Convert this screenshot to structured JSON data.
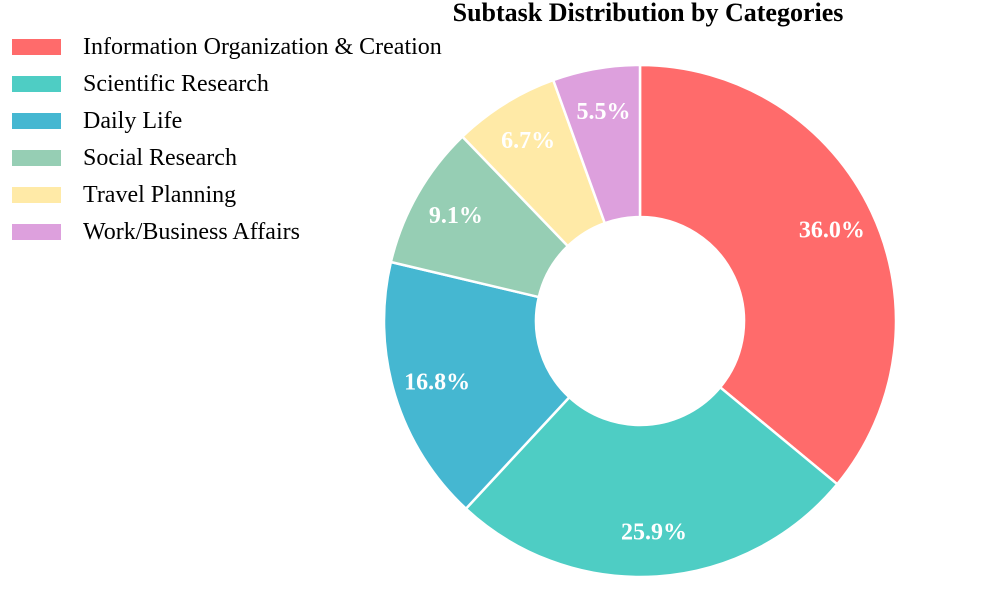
{
  "chart_data": {
    "type": "pie",
    "title": "Subtask Distribution by Categories",
    "donut": true,
    "start_angle_deg": 90,
    "direction": "clockwise",
    "legend_position": "top-left",
    "categories": [
      "Information Organization & Creation",
      "Scientific Research",
      "Daily Life",
      "Social Research",
      "Travel Planning",
      "Work/Business Affairs"
    ],
    "values": [
      36.0,
      25.9,
      16.8,
      9.1,
      6.7,
      5.5
    ],
    "labels": [
      "36.0%",
      "25.9%",
      "16.8%",
      "9.1%",
      "6.7%",
      "5.5%"
    ],
    "colors": [
      "#ff6b6b",
      "#4ecdc4",
      "#45b7d1",
      "#96ceb4",
      "#ffeaa7",
      "#dda0dd"
    ]
  }
}
